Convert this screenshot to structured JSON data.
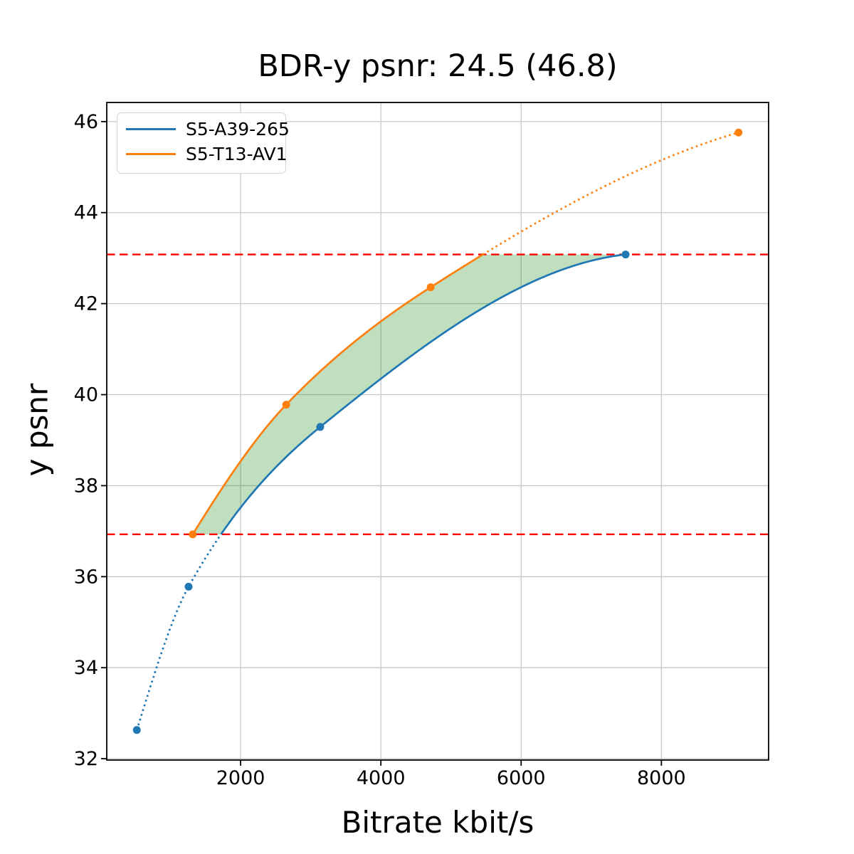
{
  "title": "BDR-y psnr: 24.5 (46.8)",
  "xlabel": "Bitrate kbit/s",
  "ylabel": "y psnr",
  "legend": {
    "position": "upper left",
    "items": [
      {
        "label": "S5-A39-265",
        "color": "#1f77b4"
      },
      {
        "label": "S5-T13-AV1",
        "color": "#ff7f0e"
      }
    ]
  },
  "chart_data": {
    "type": "line",
    "title": "BDR-y psnr: 24.5 (46.8)",
    "xlabel": "Bitrate kbit/s",
    "ylabel": "y psnr",
    "xlim": [
      91,
      9529
    ],
    "ylim": [
      31.97,
      46.42
    ],
    "xticks": [
      2000,
      4000,
      6000,
      8000
    ],
    "yticks": [
      32,
      34,
      36,
      38,
      40,
      42,
      44,
      46
    ],
    "grid": true,
    "grid_color": "#c8c8c8",
    "series": [
      {
        "name": "S5-A39-265",
        "color": "#1f77b4",
        "points": [
          [
            520,
            32.63
          ],
          [
            1258,
            35.78
          ],
          [
            3135,
            39.29
          ],
          [
            7490,
            43.08
          ]
        ]
      },
      {
        "name": "S5-T13-AV1",
        "color": "#ff7f0e",
        "points": [
          [
            1317,
            36.93
          ],
          [
            2650,
            39.78
          ],
          [
            4710,
            42.36
          ],
          [
            9100,
            45.76
          ]
        ]
      }
    ],
    "hlines": {
      "values": [
        36.93,
        43.08
      ],
      "color": "#ff0000",
      "style": "dashed"
    },
    "shaded_region": {
      "color": "#008000",
      "opacity": 0.25,
      "description": "area between the two curves inside the psnr overlap interval [36.93, 43.08]"
    },
    "bdr_label": "24.5",
    "bdr_label_secondary": "46.8"
  }
}
